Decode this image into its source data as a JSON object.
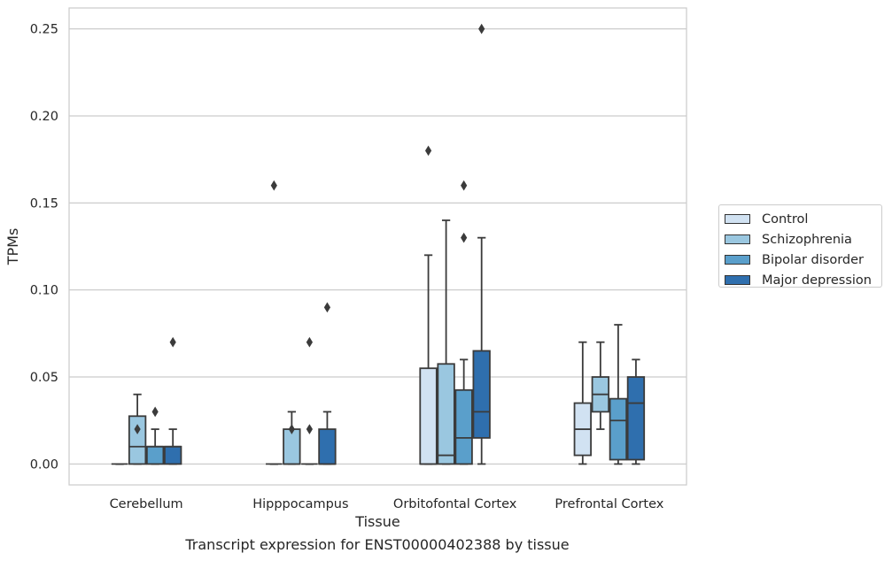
{
  "caption": "Transcript expression for ENST00000402388 by tissue",
  "chart_data": {
    "type": "box",
    "title": "",
    "xlabel": "Tissue",
    "ylabel": "TPMs",
    "ylim": [
      -0.012,
      0.262
    ],
    "yticks": [
      "0.00",
      "0.05",
      "0.10",
      "0.15",
      "0.20",
      "0.25"
    ],
    "ytick_values": [
      0,
      0.05,
      0.1,
      0.15,
      0.2,
      0.25
    ],
    "grid": true,
    "legend_position": "right",
    "categories": [
      "Cerebellum",
      "Hipppocampus",
      "Orbitofontal Cortex",
      "Prefrontal Cortex"
    ],
    "series": [
      {
        "name": "Control",
        "color": "#d1e2f2",
        "boxes": [
          {
            "whislo": 0,
            "q1": 0,
            "med": 0,
            "q3": 0,
            "whishi": 0,
            "fliers": []
          },
          {
            "whislo": 0,
            "q1": 0,
            "med": 0,
            "q3": 0,
            "whishi": 0,
            "fliers": [
              0.16
            ]
          },
          {
            "whislo": 0,
            "q1": 0,
            "med": 0,
            "q3": 0.055,
            "whishi": 0.12,
            "fliers": [
              0.18
            ]
          },
          {
            "whislo": 0,
            "q1": 0.005,
            "med": 0.02,
            "q3": 0.035,
            "whishi": 0.07,
            "fliers": []
          }
        ]
      },
      {
        "name": "Schizophrenia",
        "color": "#9ac7e0",
        "boxes": [
          {
            "whislo": 0,
            "q1": 0,
            "med": 0.01,
            "q3": 0.0275,
            "whishi": 0.04,
            "fliers": [
              0.02
            ]
          },
          {
            "whislo": 0,
            "q1": 0,
            "med": 0,
            "q3": 0.02,
            "whishi": 0.03,
            "fliers": [
              0.02
            ]
          },
          {
            "whislo": 0,
            "q1": 0,
            "med": 0.005,
            "q3": 0.0575,
            "whishi": 0.14,
            "fliers": []
          },
          {
            "whislo": 0.02,
            "q1": 0.03,
            "med": 0.04,
            "q3": 0.05,
            "whishi": 0.07,
            "fliers": []
          }
        ]
      },
      {
        "name": "Bipolar disorder",
        "color": "#5a9fcb",
        "boxes": [
          {
            "whislo": 0,
            "q1": 0,
            "med": 0.01,
            "q3": 0.01,
            "whishi": 0.02,
            "fliers": [
              0.03
            ]
          },
          {
            "whislo": 0,
            "q1": 0,
            "med": 0,
            "q3": 0,
            "whishi": 0,
            "fliers": [
              0.07,
              0.02
            ]
          },
          {
            "whislo": 0,
            "q1": 0,
            "med": 0.015,
            "q3": 0.0425,
            "whishi": 0.06,
            "fliers": [
              0.16,
              0.13
            ]
          },
          {
            "whislo": 0,
            "q1": 0.0025,
            "med": 0.025,
            "q3": 0.0375,
            "whishi": 0.08,
            "fliers": []
          }
        ]
      },
      {
        "name": "Major depression",
        "color": "#2f6fae",
        "boxes": [
          {
            "whislo": 0,
            "q1": 0,
            "med": 0.01,
            "q3": 0.01,
            "whishi": 0.02,
            "fliers": [
              0.07
            ]
          },
          {
            "whislo": 0,
            "q1": 0,
            "med": 0,
            "q3": 0.02,
            "whishi": 0.03,
            "fliers": [
              0.09
            ]
          },
          {
            "whislo": 0,
            "q1": 0.015,
            "med": 0.03,
            "q3": 0.065,
            "whishi": 0.13,
            "fliers": [
              0.25
            ]
          },
          {
            "whislo": 0,
            "q1": 0.0025,
            "med": 0.035,
            "q3": 0.05,
            "whishi": 0.06,
            "fliers": []
          }
        ]
      }
    ]
  }
}
